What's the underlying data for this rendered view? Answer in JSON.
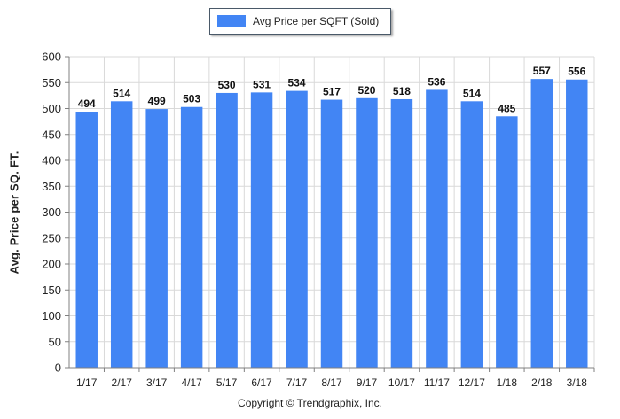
{
  "chart_data": {
    "type": "bar",
    "categories": [
      "1/17",
      "2/17",
      "3/17",
      "4/17",
      "5/17",
      "6/17",
      "7/17",
      "8/17",
      "9/17",
      "10/17",
      "11/17",
      "12/17",
      "1/18",
      "2/18",
      "3/18"
    ],
    "series": [
      {
        "name": "Avg Price per SQFT (Sold)",
        "values": [
          494,
          514,
          499,
          503,
          530,
          531,
          534,
          517,
          520,
          518,
          536,
          514,
          485,
          557,
          556
        ]
      }
    ],
    "ylabel": "Avg. Price per SQ. FT.",
    "xlabel": "",
    "ylim": [
      0,
      600
    ],
    "yticks": [
      0,
      50,
      100,
      150,
      200,
      250,
      300,
      350,
      400,
      450,
      500,
      550,
      600
    ],
    "grid": true,
    "legend_position": "top-center",
    "data_labels": true
  },
  "footer": {
    "copyright": "Copyright © Trendgraphix, Inc."
  },
  "colors": {
    "bar": "#4285f4",
    "grid": "#d9d9d9",
    "axis": "#808080"
  }
}
